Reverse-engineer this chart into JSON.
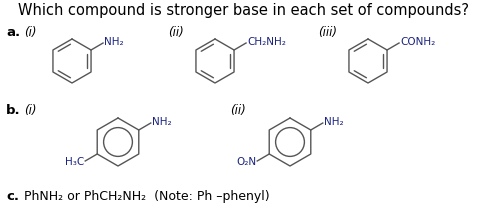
{
  "title": "Which compound is stronger base in each set of compounds?",
  "title_fontsize": 10.5,
  "bg_color": "#ffffff",
  "text_color": "#000000",
  "line_color": "#555555",
  "group_color": "#1a237e",
  "line_width": 1.0,
  "section_a_label": "a.",
  "section_b_label": "b.",
  "section_c_label": "c.",
  "section_c_text": "PhNH₂ or PhCH₂NH₂  (Note: Ph –phenyl)",
  "a_i_label": "(i)",
  "a_ii_label": "(ii)",
  "a_iii_label": "(iii)",
  "b_i_label": "(i)",
  "b_ii_label": "(ii)",
  "a_i_group": "NH₂",
  "a_ii_group": "CH₂NH₂",
  "a_iii_group": "CONH₂",
  "b_i_group_top": "NH₂",
  "b_i_group_bottom": "H₃C",
  "b_ii_group_top": "NH₂",
  "b_ii_group_bottom": "O₂N"
}
